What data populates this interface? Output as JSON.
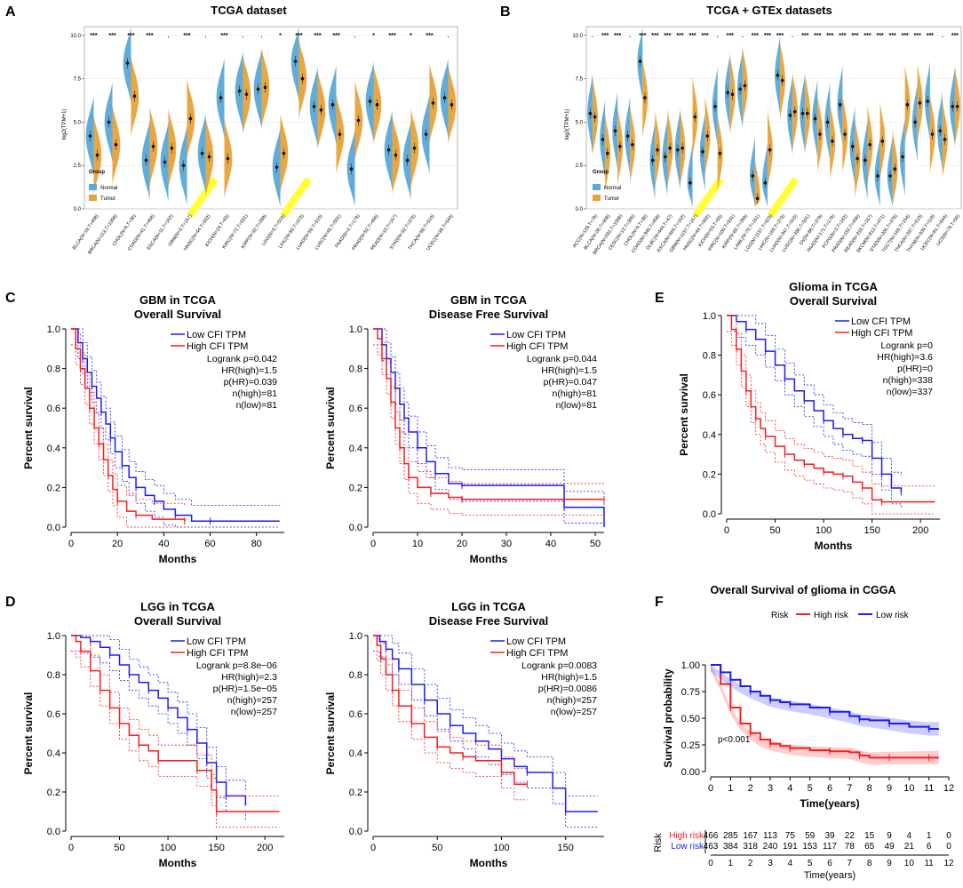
{
  "panels": {
    "A": {
      "letter": "A",
      "title": "TCGA dataset",
      "ylabel": "log2(TPM+1)",
      "group_title": "Group",
      "group_items": [
        "Normal",
        "Tumor"
      ],
      "colors": {
        "normal": "#5aa9d6",
        "tumor": "#e8a23a"
      }
    },
    "B": {
      "letter": "B",
      "title": "TCGA + GTEx datasets",
      "ylabel": "log2(TPM+1)",
      "group_title": "Group",
      "group_items": [
        "Normal",
        "Tumor"
      ]
    },
    "C": {
      "letter": "C"
    },
    "D": {
      "letter": "D"
    },
    "E": {
      "letter": "E"
    },
    "F": {
      "letter": "F"
    }
  },
  "chart_data": [
    {
      "id": "A",
      "type": "violin",
      "title": "TCGA dataset",
      "ylabel": "log2(TPM+1)",
      "ylim": [
        0,
        10.5
      ],
      "yticks": [
        "0.0",
        "2.5",
        "5.0",
        "7.5",
        "10.0"
      ],
      "legend": {
        "title": "Group",
        "items": [
          "Normal",
          "Tumor"
        ]
      },
      "categories": [
        "BLCA(N=19,T=408)",
        "BRCA(N=113,T=1098)",
        "CHOL(N=9,T=36)",
        "COAD(N=41,T=458)",
        "ESCA(N=11,T=162)",
        "GBM(N=5,T=167)",
        "HNSC(N=44,T=502)",
        "KICH(N=24,T=65)",
        "KIRC(N=72,T=531)",
        "KIRP(N=32,T=289)",
        "LGG(N=5,T=523)",
        "LIHC(N=50,T=373)",
        "LUAD(N=59,T=515)",
        "LUSC(N=49,T=501)",
        "PAAD(N=4,T=179)",
        "PRAD(N=52,T=496)",
        "READ(N=10,T=167)",
        "STAD(N=32,T=375)",
        "THCA(N=58,T=510)",
        "UCEC(N=35,T=544)"
      ],
      "highlight": [
        "GBM(N=5,T=167)",
        "LGG(N=5,T=523)"
      ],
      "significance": [
        "***",
        "***",
        "***",
        "***",
        ".",
        "***",
        ".",
        "***",
        ".",
        ".",
        "*",
        "***",
        "***",
        "***",
        ".",
        "*",
        "***",
        "*",
        "***",
        "."
      ],
      "series": [
        {
          "name": "Normal",
          "values": [
            4.2,
            5.0,
            8.4,
            2.8,
            2.7,
            2.5,
            3.2,
            6.4,
            6.8,
            6.9,
            2.4,
            8.5,
            5.9,
            6.0,
            2.3,
            6.2,
            3.4,
            2.8,
            4.3,
            6.4
          ]
        },
        {
          "name": "Tumor",
          "values": [
            3.1,
            3.7,
            6.5,
            3.6,
            3.5,
            5.2,
            3.0,
            2.9,
            6.6,
            7.0,
            3.2,
            7.5,
            5.7,
            4.3,
            5.1,
            6.0,
            3.1,
            3.5,
            6.1,
            6.0
          ]
        }
      ]
    },
    {
      "id": "B",
      "type": "violin",
      "title": "TCGA + GTEx datasets",
      "ylabel": "log2(TPM+1)",
      "ylim": [
        0,
        10.5
      ],
      "yticks": [
        "0.0",
        "2.5",
        "5.0",
        "7.5",
        "10.0"
      ],
      "legend": {
        "title": "Group",
        "items": [
          "Normal",
          "Tumor"
        ]
      },
      "categories": [
        "ACC(N=128,T=79)",
        "BLCA(N=28,T=408)",
        "BRCA(N=292,T=1098)",
        "CESC(N=13,T=306)",
        "CHOL(N=9,T=36)",
        "COAD(N=349,T=458)",
        "DLBC(N=444,T=47)",
        "ESCA(N=666,T=162)",
        "GBM(N=1157,T=167)",
        "HNSC(N=44,T=502)",
        "KICH(N=53,T=65)",
        "KIRC(N=100,T=531)",
        "KIRP(N=60,T=289)",
        "LAML(N=70,T=151)",
        "LGG(N=1157,T=523)",
        "LIHC(N=160,T=373)",
        "LUAD(N=347,T=515)",
        "LUSC(N=338,T=501)",
        "OV(N=88,T=379)",
        "PAAD(N=171,T=179)",
        "PCPG(N=3,T=182)",
        "PRAD(N=152,T=496)",
        "READ(N=318,T=167)",
        "SKCM(N=813,T=471)",
        "STAD(N=206,T=375)",
        "TGCT(N=165,T=154)",
        "THCA(N=337,T=510)",
        "THYM(N=339,T=118)",
        "UCEC(N=91,T=544)",
        "UCS(N=78,T=56)"
      ],
      "highlight": [
        "GBM(N=1157,T=167)",
        "LGG(N=1157,T=523)"
      ],
      "significance": [
        ".",
        "***",
        "***",
        ".",
        "***",
        "***",
        "***",
        "***",
        "***",
        "***",
        ".",
        "***",
        ".",
        "***",
        "***",
        "***",
        ".",
        "***",
        "***",
        "***",
        "***",
        "***",
        "***",
        "***",
        "***",
        "***",
        "***",
        "***",
        ".",
        "***"
      ],
      "series": [
        {
          "name": "Normal",
          "values": [
            5.5,
            4.0,
            4.5,
            4.2,
            8.5,
            2.8,
            3.0,
            3.4,
            1.5,
            3.3,
            5.9,
            6.7,
            6.9,
            1.9,
            1.5,
            7.7,
            5.4,
            5.5,
            5.2,
            5.0,
            6.0,
            3.6,
            2.8,
            1.9,
            1.9,
            3.0,
            5.0,
            6.2,
            4.5,
            5.9
          ]
        },
        {
          "name": "Tumor",
          "values": [
            5.3,
            3.2,
            3.6,
            3.7,
            6.4,
            3.4,
            3.5,
            3.5,
            5.3,
            4.2,
            3.2,
            6.6,
            7.1,
            0.6,
            3.4,
            7.4,
            5.6,
            5.5,
            4.3,
            3.9,
            4.3,
            2.9,
            3.7,
            3.9,
            2.3,
            6.0,
            6.1,
            4.3,
            4.0,
            5.9
          ]
        }
      ]
    },
    {
      "id": "C1",
      "type": "line",
      "title": "GBM in TCGA",
      "subtitle": "Overall Survival",
      "xlabel": "Months",
      "ylabel": "Percent survival",
      "xlim": [
        0,
        92
      ],
      "ylim": [
        0,
        1
      ],
      "xticks": [
        0,
        20,
        40,
        60,
        80
      ],
      "yticks": [
        "0.0",
        "0.2",
        "0.4",
        "0.6",
        "0.8",
        "1.0"
      ],
      "legend": [
        "Low CFI TPM",
        "High CFI TPM"
      ],
      "stats": [
        "Logrank p=0.042",
        "HR(high)=1.5",
        "p(HR)=0.039",
        "n(high)=81",
        "n(low)=81"
      ],
      "series": [
        {
          "name": "Low CFI TPM",
          "x": [
            0,
            3,
            5,
            7,
            9,
            11,
            13,
            15,
            17,
            19,
            22,
            25,
            28,
            32,
            36,
            40,
            45,
            52,
            60,
            90
          ],
          "y": [
            1.0,
            0.93,
            0.85,
            0.78,
            0.71,
            0.65,
            0.58,
            0.52,
            0.45,
            0.38,
            0.31,
            0.25,
            0.2,
            0.16,
            0.13,
            0.09,
            0.06,
            0.03,
            0.03,
            0.03
          ]
        },
        {
          "name": "High CFI TPM",
          "x": [
            0,
            2,
            4,
            6,
            8,
            10,
            12,
            14,
            16,
            18,
            20,
            24,
            28,
            35,
            49
          ],
          "y": [
            1.0,
            0.9,
            0.8,
            0.7,
            0.6,
            0.5,
            0.42,
            0.34,
            0.26,
            0.19,
            0.13,
            0.08,
            0.06,
            0.04,
            0.03
          ]
        }
      ]
    },
    {
      "id": "C2",
      "type": "line",
      "title": "GBM in TCGA",
      "subtitle": "Disease Free Survival",
      "xlabel": "Months",
      "ylabel": "Percent survival",
      "xlim": [
        0,
        52
      ],
      "ylim": [
        0,
        1
      ],
      "xticks": [
        0,
        10,
        20,
        30,
        40,
        50
      ],
      "yticks": [
        "0.0",
        "0.2",
        "0.4",
        "0.6",
        "0.8",
        "1.0"
      ],
      "legend": [
        "Low CFI TPM",
        "High CFI TPM"
      ],
      "stats": [
        "Logrank p=0.044",
        "HR(high)=1.5",
        "p(HR)=0.047",
        "n(high)=81",
        "n(low)=81"
      ],
      "series": [
        {
          "name": "Low CFI TPM",
          "x": [
            0,
            2,
            3,
            4,
            5,
            6,
            7,
            8,
            10,
            12,
            14,
            17,
            20,
            30,
            43,
            52
          ],
          "y": [
            1.0,
            0.92,
            0.85,
            0.78,
            0.7,
            0.62,
            0.55,
            0.48,
            0.4,
            0.33,
            0.27,
            0.22,
            0.21,
            0.21,
            0.1,
            0.0
          ]
        },
        {
          "name": "High CFI TPM",
          "x": [
            0,
            1,
            2,
            3,
            4,
            5,
            6,
            7,
            8,
            10,
            13,
            17,
            20,
            30,
            52
          ],
          "y": [
            1.0,
            0.95,
            0.85,
            0.75,
            0.63,
            0.5,
            0.4,
            0.32,
            0.25,
            0.2,
            0.17,
            0.15,
            0.14,
            0.14,
            0.14
          ]
        }
      ]
    },
    {
      "id": "D1",
      "type": "line",
      "title": "LGG in TCGA",
      "subtitle": "Overall Survival",
      "xlabel": "Months",
      "ylabel": "Percent survival",
      "xlim": [
        0,
        220
      ],
      "ylim": [
        0,
        1
      ],
      "xticks": [
        0,
        50,
        100,
        150,
        200
      ],
      "yticks": [
        "0.0",
        "0.2",
        "0.4",
        "0.6",
        "0.8",
        "1.0"
      ],
      "legend": [
        "Low CFI TPM",
        "High CFI TPM"
      ],
      "stats": [
        "Logrank p=8.8e−06",
        "HR(high)=2.3",
        "p(HR)=1.5e−05",
        "n(high)=257",
        "n(low)=257"
      ],
      "series": [
        {
          "name": "Low CFI TPM",
          "x": [
            0,
            10,
            20,
            30,
            40,
            50,
            60,
            70,
            80,
            90,
            100,
            110,
            120,
            130,
            140,
            150,
            160,
            180
          ],
          "y": [
            1.0,
            0.99,
            0.97,
            0.94,
            0.9,
            0.85,
            0.8,
            0.76,
            0.72,
            0.68,
            0.63,
            0.58,
            0.52,
            0.45,
            0.35,
            0.25,
            0.18,
            0.13
          ]
        },
        {
          "name": "High CFI TPM",
          "x": [
            0,
            5,
            10,
            20,
            30,
            40,
            50,
            60,
            70,
            80,
            90,
            110,
            130,
            145,
            150,
            215
          ],
          "y": [
            1.0,
            0.97,
            0.92,
            0.82,
            0.72,
            0.63,
            0.55,
            0.49,
            0.44,
            0.41,
            0.36,
            0.36,
            0.31,
            0.21,
            0.1,
            0.1
          ]
        }
      ]
    },
    {
      "id": "D2",
      "type": "line",
      "title": "LGG in TCGA",
      "subtitle": "Disease Free Survival",
      "xlabel": "Months",
      "ylabel": "Percent survival",
      "xlim": [
        0,
        180
      ],
      "ylim": [
        0,
        1
      ],
      "xticks": [
        0,
        50,
        100,
        150
      ],
      "yticks": [
        "0.0",
        "0.2",
        "0.4",
        "0.6",
        "0.8",
        "1.0"
      ],
      "legend": [
        "Low CFI TPM",
        "High CFI TPM"
      ],
      "stats": [
        "Logrank p=0.0083",
        "HR(high)=1.5",
        "p(HR)=0.0086",
        "n(high)=257",
        "n(low)=257"
      ],
      "series": [
        {
          "name": "Low CFI TPM",
          "x": [
            0,
            5,
            10,
            15,
            20,
            30,
            40,
            50,
            60,
            70,
            80,
            90,
            100,
            110,
            120,
            140,
            150,
            175
          ],
          "y": [
            1.0,
            0.97,
            0.93,
            0.88,
            0.83,
            0.75,
            0.67,
            0.6,
            0.54,
            0.5,
            0.46,
            0.42,
            0.37,
            0.33,
            0.3,
            0.22,
            0.1,
            0.1
          ]
        },
        {
          "name": "High CFI TPM",
          "x": [
            0,
            3,
            6,
            10,
            15,
            20,
            30,
            40,
            50,
            60,
            70,
            80,
            100,
            110,
            120
          ],
          "y": [
            1.0,
            0.95,
            0.88,
            0.8,
            0.72,
            0.64,
            0.55,
            0.48,
            0.43,
            0.4,
            0.38,
            0.36,
            0.3,
            0.24,
            0.24
          ]
        }
      ]
    },
    {
      "id": "E",
      "type": "line",
      "title": "Glioma in TCGA",
      "subtitle": "Overall Survival",
      "xlabel": "Months",
      "ylabel": "Percent survival",
      "xlim": [
        0,
        220
      ],
      "ylim": [
        0,
        1
      ],
      "xticks": [
        0,
        50,
        100,
        150,
        200
      ],
      "yticks": [
        "0.0",
        "0.2",
        "0.4",
        "0.6",
        "0.8",
        "1.0"
      ],
      "legend": [
        "Low CFI TPM",
        "High CFI TPM"
      ],
      "stats": [
        "Logrank p=0",
        "HR(high)=3.6",
        "p(HR)=0",
        "n(high)=338",
        "n(low)=337"
      ],
      "series": [
        {
          "name": "Low CFI TPM",
          "x": [
            0,
            10,
            20,
            30,
            40,
            50,
            60,
            70,
            80,
            90,
            100,
            110,
            120,
            130,
            140,
            150,
            160,
            170,
            180
          ],
          "y": [
            1.0,
            0.97,
            0.93,
            0.88,
            0.82,
            0.75,
            0.68,
            0.62,
            0.57,
            0.52,
            0.47,
            0.43,
            0.4,
            0.38,
            0.37,
            0.28,
            0.2,
            0.13,
            0.11
          ]
        },
        {
          "name": "High CFI TPM",
          "x": [
            0,
            5,
            10,
            15,
            20,
            25,
            30,
            35,
            40,
            50,
            60,
            70,
            80,
            90,
            100,
            110,
            120,
            130,
            140,
            150,
            160,
            215
          ],
          "y": [
            1.0,
            0.93,
            0.83,
            0.72,
            0.62,
            0.54,
            0.48,
            0.43,
            0.39,
            0.34,
            0.3,
            0.27,
            0.25,
            0.23,
            0.21,
            0.2,
            0.19,
            0.16,
            0.13,
            0.07,
            0.06,
            0.06
          ]
        }
      ]
    },
    {
      "id": "F",
      "type": "line",
      "title": "Overall Survival of glioma in CGGA",
      "xlabel": "Time(years)",
      "ylabel": "Survival probability",
      "xlim": [
        0,
        12
      ],
      "ylim": [
        0,
        1
      ],
      "xticks": [
        0,
        1,
        2,
        3,
        4,
        5,
        6,
        7,
        8,
        9,
        10,
        11,
        12
      ],
      "yticks": [
        "0.00",
        "0.25",
        "0.50",
        "0.75",
        "1.00"
      ],
      "legend_title": "Risk",
      "legend": [
        "High risk",
        "Low risk"
      ],
      "annotation": "p<0.001",
      "risk_table": {
        "label": "Risk",
        "rows": [
          {
            "name": "High risk",
            "counts": [
              466,
              285,
              167,
              113,
              75,
              59,
              39,
              22,
              15,
              9,
              4,
              1,
              0
            ]
          },
          {
            "name": "Low risk",
            "counts": [
              463,
              384,
              318,
              240,
              191,
              153,
              117,
              78,
              65,
              49,
              21,
              6,
              0
            ]
          }
        ],
        "xlabel": "Time(years)"
      },
      "series": [
        {
          "name": "High risk",
          "x": [
            0,
            0.5,
            1,
            1.5,
            2,
            2.5,
            3,
            3.5,
            4,
            5,
            6,
            7,
            7.5,
            8,
            9,
            10,
            11,
            11.5
          ],
          "y": [
            1.0,
            0.82,
            0.6,
            0.45,
            0.36,
            0.3,
            0.26,
            0.24,
            0.22,
            0.2,
            0.19,
            0.18,
            0.15,
            0.13,
            0.13,
            0.13,
            0.13,
            0.13
          ]
        },
        {
          "name": "Low risk",
          "x": [
            0,
            0.5,
            1,
            1.5,
            2,
            2.5,
            3,
            3.5,
            4,
            5,
            6,
            7,
            7.5,
            8,
            9,
            10,
            11,
            11.5
          ],
          "y": [
            1.0,
            0.93,
            0.86,
            0.8,
            0.75,
            0.71,
            0.67,
            0.65,
            0.63,
            0.6,
            0.56,
            0.52,
            0.49,
            0.48,
            0.45,
            0.42,
            0.4,
            0.4
          ]
        }
      ]
    }
  ]
}
